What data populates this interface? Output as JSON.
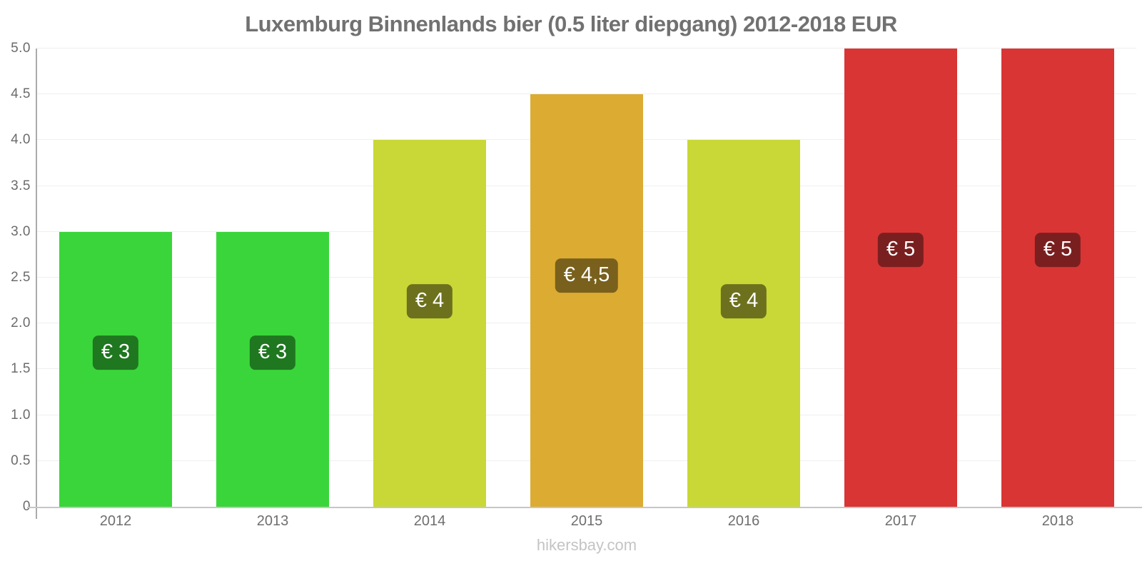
{
  "title": "Luxemburg Binnenlands bier (0.5 liter diepgang) 2012-2018 EUR",
  "footer": "hikersbay.com",
  "colors": {
    "title": "#717171",
    "axis_label": "#6b6b6b",
    "tick_label": "#6e6e6e",
    "grid": "#efefef",
    "axis_line": "#ababab",
    "baseline": "#c6c6c6",
    "footer": "#c4c4c4",
    "badge_text": "#ffffff",
    "background": "#ffffff"
  },
  "chart_data": {
    "type": "bar",
    "title": "Luxemburg Binnenlands bier (0.5 liter diepgang) 2012-2018 EUR",
    "xlabel": "",
    "ylabel": "",
    "currency": "EUR",
    "categories": [
      "2012",
      "2013",
      "2014",
      "2015",
      "2016",
      "2017",
      "2018"
    ],
    "values": [
      3,
      3,
      4,
      4.5,
      4,
      5,
      5
    ],
    "value_labels": [
      "€ 3",
      "€ 3",
      "€ 4",
      "€ 4,5",
      "€ 4",
      "€ 5",
      "€ 5"
    ],
    "bar_colors": [
      "#3ad53a",
      "#3ad53a",
      "#c9d836",
      "#dcab32",
      "#c9d836",
      "#d93535",
      "#d93535"
    ],
    "badge_colors": [
      "#1f771f",
      "#1f771f",
      "#6d711d",
      "#79601c",
      "#6d711d",
      "#7a1f1f",
      "#7a1f1f"
    ],
    "ylim": [
      0,
      5
    ],
    "ytick_values": [
      0,
      0.5,
      1,
      1.5,
      2,
      2.5,
      3,
      3.5,
      4,
      4.5,
      5
    ],
    "ytick_labels": [
      "0",
      "0.5",
      "1.0",
      "1.5",
      "2.0",
      "2.5",
      "3.0",
      "3.5",
      "4.0",
      "4.5",
      "5.0"
    ],
    "grid": true,
    "legend": false
  }
}
